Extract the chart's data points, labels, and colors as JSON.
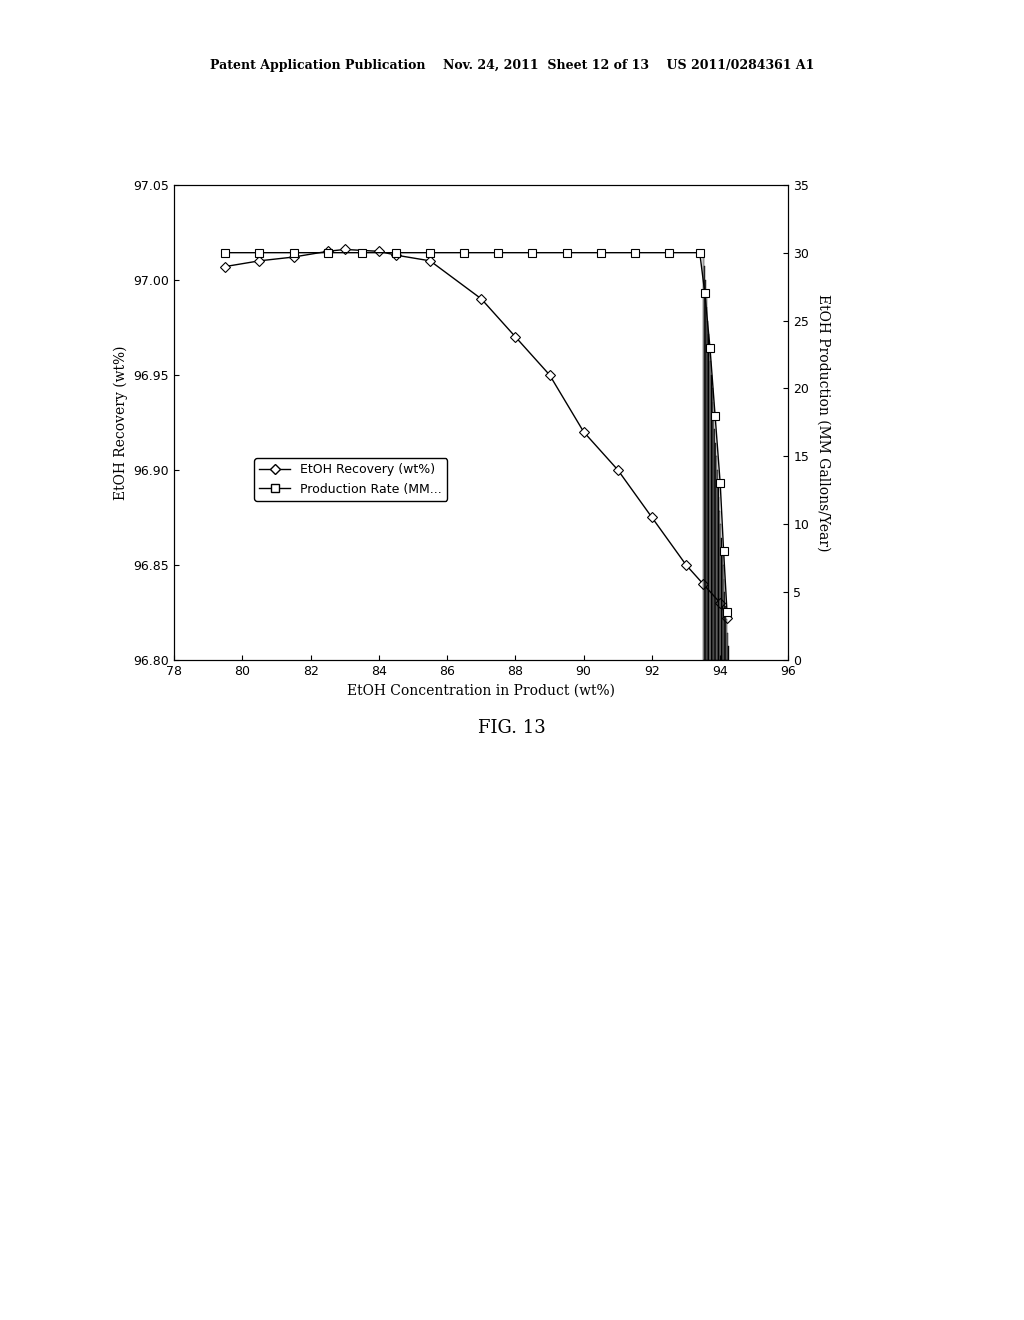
{
  "title_header": "Patent Application Publication    Nov. 24, 2011  Sheet 12 of 13    US 2011/0284361 A1",
  "fig_label": "FIG. 13",
  "xlabel": "EtOH Concentration in Product (wt%)",
  "ylabel_left": "EtOH Recovery (wt%)",
  "ylabel_right": "EtOH Production (MM Gallons/Year)",
  "xlim": [
    78,
    96
  ],
  "ylim_left": [
    96.8,
    97.05
  ],
  "ylim_right": [
    0,
    35
  ],
  "xticks": [
    78,
    80,
    82,
    84,
    86,
    88,
    90,
    92,
    94,
    96
  ],
  "yticks_left": [
    96.8,
    96.85,
    96.9,
    96.95,
    97.0,
    97.05
  ],
  "yticks_right": [
    0,
    5,
    10,
    15,
    20,
    25,
    30,
    35
  ],
  "recovery_x": [
    79.5,
    80.5,
    81.5,
    82.5,
    83.0,
    84.0,
    84.5,
    85.5,
    87.0,
    88.0,
    89.0,
    90.0,
    91.0,
    92.0,
    93.0,
    93.5,
    94.0,
    94.2
  ],
  "recovery_y": [
    97.007,
    97.01,
    97.012,
    97.015,
    97.016,
    97.015,
    97.013,
    97.01,
    96.99,
    96.97,
    96.95,
    96.92,
    96.9,
    96.875,
    96.85,
    96.84,
    96.83,
    96.822
  ],
  "production_x": [
    79.5,
    80.5,
    81.5,
    82.5,
    83.5,
    84.5,
    85.5,
    86.5,
    87.5,
    88.5,
    89.5,
    90.5,
    91.5,
    92.5,
    93.4,
    93.55,
    93.7,
    93.85,
    94.0,
    94.1,
    94.2
  ],
  "production_y": [
    30.0,
    30.0,
    30.0,
    30.0,
    30.0,
    30.0,
    30.0,
    30.0,
    30.0,
    30.0,
    30.0,
    30.0,
    30.0,
    30.0,
    30.0,
    27.0,
    23.0,
    18.0,
    13.0,
    8.0,
    3.5
  ],
  "hatch_x_start": 93.5,
  "hatch_x_end": 94.25,
  "hatch_n": 30,
  "legend_labels": [
    "EtOH Recovery (wt%)",
    "Production Rate (MM..."
  ],
  "background_color": "#ffffff",
  "fontsize_axis_label": 10,
  "fontsize_tick": 9,
  "fontsize_header": 9,
  "fontsize_figlabel": 13
}
